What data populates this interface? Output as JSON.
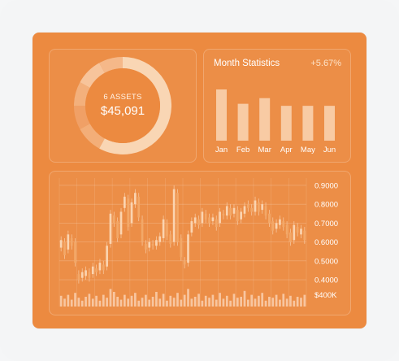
{
  "colors": {
    "panel_bg": "#ec8a40",
    "accent_light": "#f8c9a0",
    "text_white": "#ffffff"
  },
  "donut": {
    "assets_label": "6 ASSETS",
    "total_value": "$45,091",
    "segments": [
      0.58,
      0.09,
      0.08,
      0.08,
      0.09,
      0.08
    ]
  },
  "stats": {
    "title": "Month Statistics",
    "change": "+5.67%"
  },
  "chart_data": [
    {
      "type": "bar",
      "title": "Month Statistics",
      "categories": [
        "Jan",
        "Feb",
        "Mar",
        "Apr",
        "May",
        "Jun"
      ],
      "values": [
        1.0,
        0.72,
        0.83,
        0.68,
        0.68,
        0.68
      ]
    },
    {
      "type": "candlestick",
      "y_ticks": [
        "0.9000",
        "0.8000",
        "0.7000",
        "0.6000",
        "0.5000",
        "0.4000"
      ],
      "ylim": [
        0.37,
        0.93
      ],
      "volume_label": "$400K",
      "candles": [
        [
          0.57,
          0.61
        ],
        [
          0.6,
          0.53
        ],
        [
          0.56,
          0.64
        ],
        [
          0.62,
          0.58
        ],
        [
          0.6,
          0.49
        ],
        [
          0.43,
          0.4
        ],
        [
          0.41,
          0.44
        ],
        [
          0.42,
          0.45
        ],
        [
          0.44,
          0.41
        ],
        [
          0.43,
          0.47
        ],
        [
          0.46,
          0.44
        ],
        [
          0.45,
          0.49
        ],
        [
          0.48,
          0.45
        ],
        [
          0.47,
          0.58
        ],
        [
          0.59,
          0.75
        ],
        [
          0.74,
          0.7
        ],
        [
          0.71,
          0.62
        ],
        [
          0.64,
          0.76
        ],
        [
          0.78,
          0.84
        ],
        [
          0.83,
          0.68
        ],
        [
          0.7,
          0.81
        ],
        [
          0.8,
          0.86
        ],
        [
          0.84,
          0.73
        ],
        [
          0.72,
          0.6
        ],
        [
          0.59,
          0.56
        ],
        [
          0.57,
          0.6
        ],
        [
          0.59,
          0.58
        ],
        [
          0.58,
          0.61
        ],
        [
          0.6,
          0.63
        ],
        [
          0.62,
          0.72
        ],
        [
          0.7,
          0.63
        ],
        [
          0.64,
          0.59
        ],
        [
          0.6,
          0.88
        ],
        [
          0.86,
          0.6
        ],
        [
          0.62,
          0.52
        ],
        [
          0.5,
          0.48
        ],
        [
          0.49,
          0.64
        ],
        [
          0.65,
          0.71
        ],
        [
          0.7,
          0.73
        ],
        [
          0.72,
          0.69
        ],
        [
          0.7,
          0.76
        ],
        [
          0.75,
          0.72
        ],
        [
          0.73,
          0.7
        ],
        [
          0.71,
          0.73
        ],
        [
          0.72,
          0.68
        ],
        [
          0.7,
          0.76
        ],
        [
          0.75,
          0.74
        ],
        [
          0.74,
          0.79
        ],
        [
          0.78,
          0.74
        ],
        [
          0.75,
          0.78
        ],
        [
          0.77,
          0.71
        ],
        [
          0.72,
          0.76
        ],
        [
          0.75,
          0.79
        ],
        [
          0.8,
          0.78
        ],
        [
          0.78,
          0.76
        ],
        [
          0.76,
          0.82
        ],
        [
          0.81,
          0.76
        ],
        [
          0.77,
          0.8
        ],
        [
          0.79,
          0.74
        ],
        [
          0.75,
          0.7
        ],
        [
          0.71,
          0.66
        ],
        [
          0.67,
          0.7
        ],
        [
          0.69,
          0.72
        ],
        [
          0.71,
          0.68
        ],
        [
          0.69,
          0.64
        ],
        [
          0.65,
          0.6
        ],
        [
          0.61,
          0.69
        ],
        [
          0.68,
          0.65
        ],
        [
          0.64,
          0.67
        ],
        [
          0.66,
          0.61
        ]
      ],
      "volumes": [
        0.55,
        0.4,
        0.6,
        0.35,
        0.7,
        0.45,
        0.3,
        0.5,
        0.65,
        0.4,
        0.55,
        0.3,
        0.6,
        0.45,
        0.9,
        0.75,
        0.5,
        0.35,
        0.6,
        0.4,
        0.55,
        0.7,
        0.3,
        0.45,
        0.6,
        0.35,
        0.5,
        0.75,
        0.4,
        0.65,
        0.3,
        0.55,
        0.45,
        0.7,
        0.35,
        0.6,
        0.9,
        0.4,
        0.5,
        0.65,
        0.3,
        0.55,
        0.45,
        0.6,
        0.35,
        0.7,
        0.4,
        0.55,
        0.3,
        0.65,
        0.45,
        0.5,
        0.8,
        0.35,
        0.6,
        0.4,
        0.55,
        0.7,
        0.3,
        0.5,
        0.45,
        0.6,
        0.35,
        0.65,
        0.4,
        0.55,
        0.3,
        0.5,
        0.45,
        0.6
      ]
    }
  ]
}
